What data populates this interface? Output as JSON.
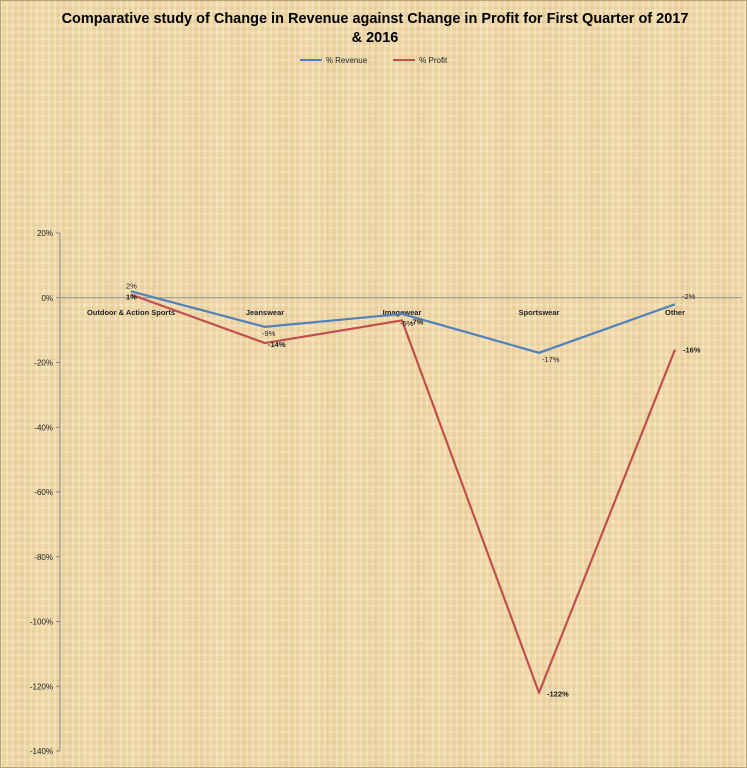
{
  "chart_data": {
    "type": "line",
    "title": "Comparative study of Change in Revenue against Change in Profit for First Quarter of 2017 & 2016",
    "categories": [
      "Outdoor & Action Sports",
      "Jeanswear",
      "Imagewear",
      "Sportswear",
      "Other"
    ],
    "series": [
      {
        "name": "% Revenue",
        "color": "#4f81bd",
        "values": [
          2,
          -9,
          -5,
          -17,
          -2
        ],
        "labels": [
          "2%",
          "-9%",
          "-5%",
          "-17%",
          "-2%"
        ]
      },
      {
        "name": "% Profit",
        "color": "#c0504d",
        "values": [
          1,
          -14,
          -7,
          -122,
          -16
        ],
        "labels": [
          "1%",
          "-14%",
          "-7%",
          "-122%",
          "-16%"
        ]
      }
    ],
    "ylim": [
      -140,
      20
    ],
    "yticks": [
      20,
      0,
      -20,
      -40,
      -60,
      -80,
      -100,
      -120,
      -140
    ],
    "ytick_labels": [
      "20%",
      "0%",
      "-20%",
      "-40%",
      "-60%",
      "-80%",
      "-100%",
      "-120%",
      "-140%"
    ],
    "grid": false,
    "legend_position": "top"
  }
}
